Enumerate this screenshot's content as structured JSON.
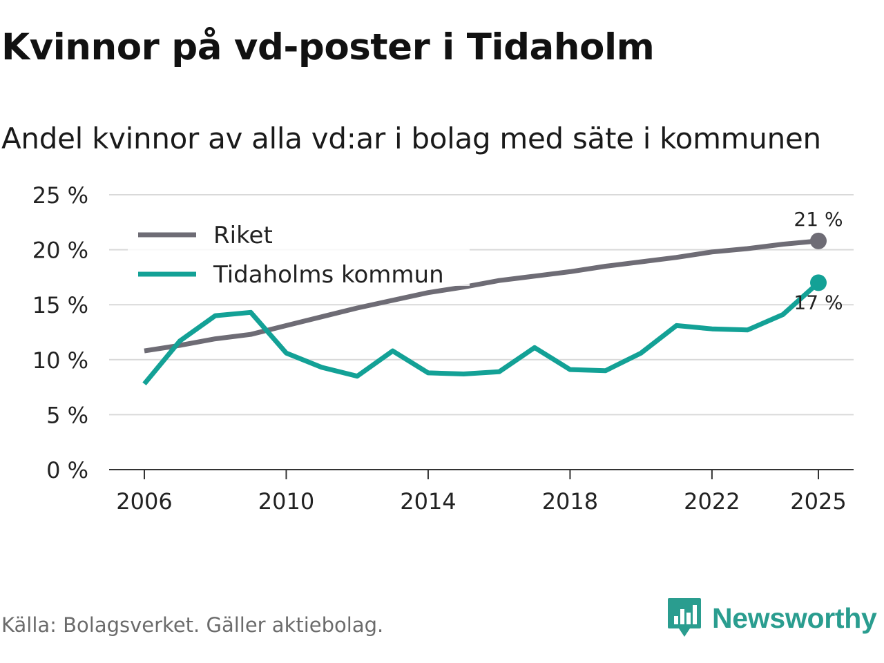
{
  "title": "Kvinnor på vd-poster i Tidaholm",
  "subtitle": "Andel kvinnor av alla vd:ar i bolag med säte i kommunen",
  "source": "Källa: Bolagsverket. Gäller aktiebolag.",
  "brand": {
    "name": "Newsworthy",
    "icon": "newsworthy-logo-icon",
    "color": "#2a9d8f"
  },
  "chart_data": {
    "type": "line",
    "title": "Kvinnor på vd-poster i Tidaholm",
    "subtitle": "Andel kvinnor av alla vd:ar i bolag med säte i kommunen",
    "xlabel": "",
    "ylabel": "",
    "ylim": [
      0,
      25
    ],
    "xlim": [
      2006,
      2025
    ],
    "grid": true,
    "legend_position": "top-left",
    "x": [
      2006,
      2007,
      2008,
      2009,
      2010,
      2011,
      2012,
      2013,
      2014,
      2015,
      2016,
      2017,
      2018,
      2019,
      2020,
      2021,
      2022,
      2023,
      2024,
      2025
    ],
    "x_ticks": [
      2006,
      2010,
      2014,
      2018,
      2022,
      2025
    ],
    "x_tick_labels": [
      "2006",
      "2010",
      "2014",
      "2018",
      "2022",
      "2025"
    ],
    "y_ticks": [
      0,
      5,
      10,
      15,
      20,
      25
    ],
    "y_tick_labels": [
      "0 %",
      "5 %",
      "10 %",
      "15 %",
      "20 %",
      "25 %"
    ],
    "series": [
      {
        "name": "Riket",
        "color": "#6e6c75",
        "values": [
          10.8,
          11.3,
          11.9,
          12.3,
          13.1,
          13.9,
          14.7,
          15.4,
          16.1,
          16.6,
          17.2,
          17.6,
          18.0,
          18.5,
          18.9,
          19.3,
          19.8,
          20.1,
          20.5,
          20.8
        ],
        "end_label": "21 %"
      },
      {
        "name": "Tidaholms kommun",
        "color": "#13a196",
        "values": [
          7.8,
          11.7,
          14.0,
          14.3,
          10.6,
          9.3,
          8.5,
          10.8,
          8.8,
          8.7,
          8.9,
          11.1,
          9.1,
          9.0,
          10.6,
          13.1,
          12.8,
          12.7,
          14.1,
          17.0
        ],
        "end_label": "17 %"
      }
    ]
  }
}
